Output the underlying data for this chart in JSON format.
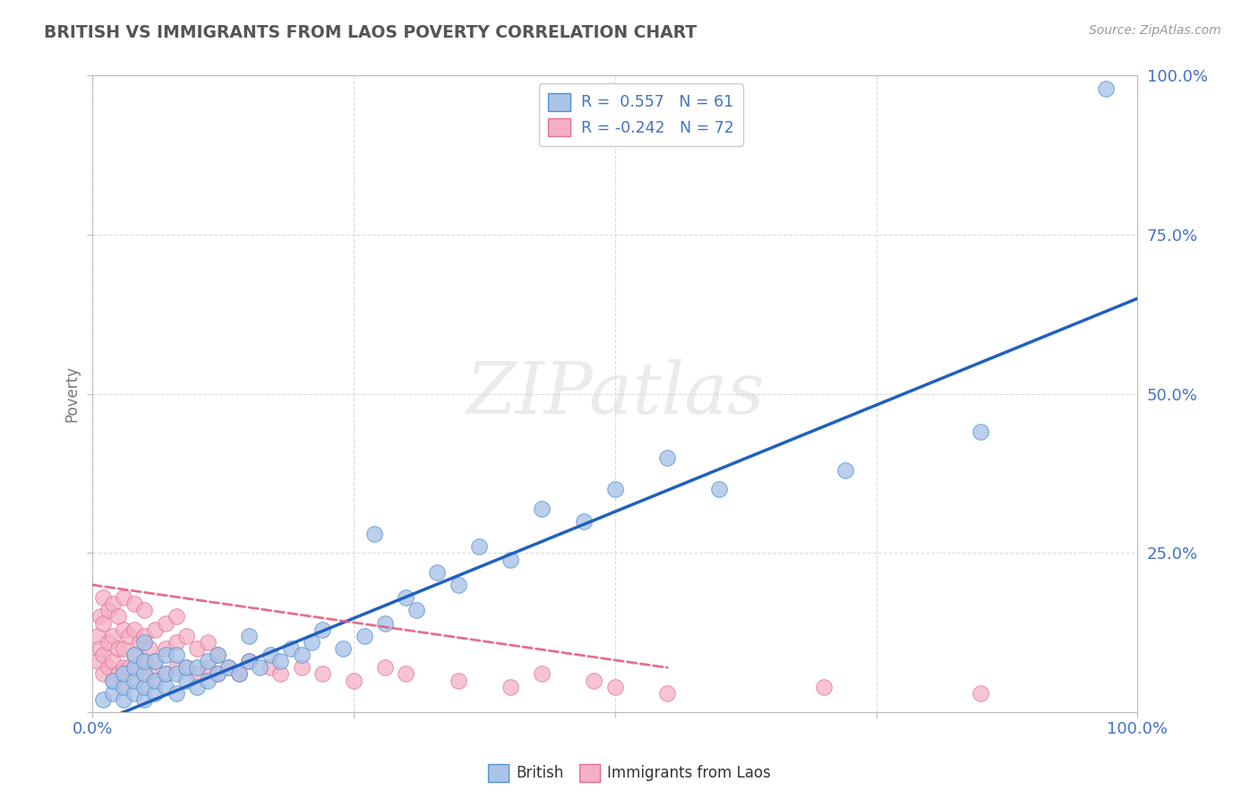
{
  "title": "BRITISH VS IMMIGRANTS FROM LAOS POVERTY CORRELATION CHART",
  "source": "Source: ZipAtlas.com",
  "ylabel": "Poverty",
  "watermark": "ZIPatlas",
  "british_R": 0.557,
  "british_N": 61,
  "laos_R": -0.242,
  "laos_N": 72,
  "british_color": "#aac4e8",
  "laos_color": "#f5b0c5",
  "british_edge_color": "#5590d0",
  "laos_edge_color": "#e07090",
  "british_line_color": "#2060c0",
  "laos_line_color": "#e06080",
  "title_color": "#555555",
  "axis_label_color": "#777777",
  "tick_label_color": "#4472c4",
  "grid_color": "#cccccc",
  "background_color": "#ffffff",
  "xlim": [
    0,
    1
  ],
  "ylim": [
    0,
    1
  ],
  "xticks": [
    0,
    0.25,
    0.5,
    0.75,
    1.0
  ],
  "yticks": [
    0,
    0.25,
    0.5,
    0.75,
    1.0
  ],
  "xticklabels": [
    "0.0%",
    "",
    "",
    "",
    "100.0%"
  ],
  "yticklabels": [
    "",
    "25.0%",
    "50.0%",
    "75.0%",
    "100.0%"
  ],
  "brit_line_x0": 0.0,
  "brit_line_y0": -0.02,
  "brit_line_x1": 1.0,
  "brit_line_y1": 0.65,
  "laos_line_x0": 0.0,
  "laos_line_y0": 0.2,
  "laos_line_x1": 0.55,
  "laos_line_y1": 0.07,
  "british_x": [
    0.01,
    0.02,
    0.02,
    0.03,
    0.03,
    0.03,
    0.04,
    0.04,
    0.04,
    0.04,
    0.05,
    0.05,
    0.05,
    0.05,
    0.05,
    0.06,
    0.06,
    0.06,
    0.07,
    0.07,
    0.07,
    0.08,
    0.08,
    0.08,
    0.09,
    0.09,
    0.1,
    0.1,
    0.11,
    0.11,
    0.12,
    0.12,
    0.13,
    0.14,
    0.15,
    0.15,
    0.16,
    0.17,
    0.18,
    0.19,
    0.2,
    0.21,
    0.22,
    0.24,
    0.26,
    0.27,
    0.28,
    0.3,
    0.31,
    0.33,
    0.35,
    0.37,
    0.4,
    0.43,
    0.47,
    0.5,
    0.55,
    0.6,
    0.72,
    0.85,
    0.97
  ],
  "british_y": [
    0.02,
    0.03,
    0.05,
    0.02,
    0.04,
    0.06,
    0.03,
    0.05,
    0.07,
    0.09,
    0.02,
    0.04,
    0.06,
    0.08,
    0.11,
    0.03,
    0.05,
    0.08,
    0.04,
    0.06,
    0.09,
    0.03,
    0.06,
    0.09,
    0.05,
    0.07,
    0.04,
    0.07,
    0.05,
    0.08,
    0.06,
    0.09,
    0.07,
    0.06,
    0.08,
    0.12,
    0.07,
    0.09,
    0.08,
    0.1,
    0.09,
    0.11,
    0.13,
    0.1,
    0.12,
    0.28,
    0.14,
    0.18,
    0.16,
    0.22,
    0.2,
    0.26,
    0.24,
    0.32,
    0.3,
    0.35,
    0.4,
    0.35,
    0.38,
    0.44,
    0.98
  ],
  "laos_x": [
    0.005,
    0.005,
    0.008,
    0.008,
    0.01,
    0.01,
    0.01,
    0.01,
    0.015,
    0.015,
    0.015,
    0.02,
    0.02,
    0.02,
    0.02,
    0.025,
    0.025,
    0.025,
    0.03,
    0.03,
    0.03,
    0.03,
    0.03,
    0.035,
    0.035,
    0.04,
    0.04,
    0.04,
    0.04,
    0.045,
    0.045,
    0.05,
    0.05,
    0.05,
    0.05,
    0.055,
    0.055,
    0.06,
    0.06,
    0.06,
    0.07,
    0.07,
    0.07,
    0.08,
    0.08,
    0.08,
    0.09,
    0.09,
    0.1,
    0.1,
    0.11,
    0.11,
    0.12,
    0.12,
    0.13,
    0.14,
    0.15,
    0.17,
    0.18,
    0.2,
    0.22,
    0.25,
    0.28,
    0.3,
    0.35,
    0.4,
    0.43,
    0.48,
    0.5,
    0.55,
    0.7,
    0.85
  ],
  "laos_y": [
    0.08,
    0.12,
    0.1,
    0.15,
    0.06,
    0.09,
    0.14,
    0.18,
    0.07,
    0.11,
    0.16,
    0.05,
    0.08,
    0.12,
    0.17,
    0.06,
    0.1,
    0.15,
    0.04,
    0.07,
    0.1,
    0.13,
    0.18,
    0.07,
    0.12,
    0.05,
    0.09,
    0.13,
    0.17,
    0.07,
    0.11,
    0.04,
    0.08,
    0.12,
    0.16,
    0.06,
    0.1,
    0.05,
    0.08,
    0.13,
    0.06,
    0.1,
    0.14,
    0.07,
    0.11,
    0.15,
    0.07,
    0.12,
    0.06,
    0.1,
    0.07,
    0.11,
    0.06,
    0.09,
    0.07,
    0.06,
    0.08,
    0.07,
    0.06,
    0.07,
    0.06,
    0.05,
    0.07,
    0.06,
    0.05,
    0.04,
    0.06,
    0.05,
    0.04,
    0.03,
    0.04,
    0.03
  ]
}
